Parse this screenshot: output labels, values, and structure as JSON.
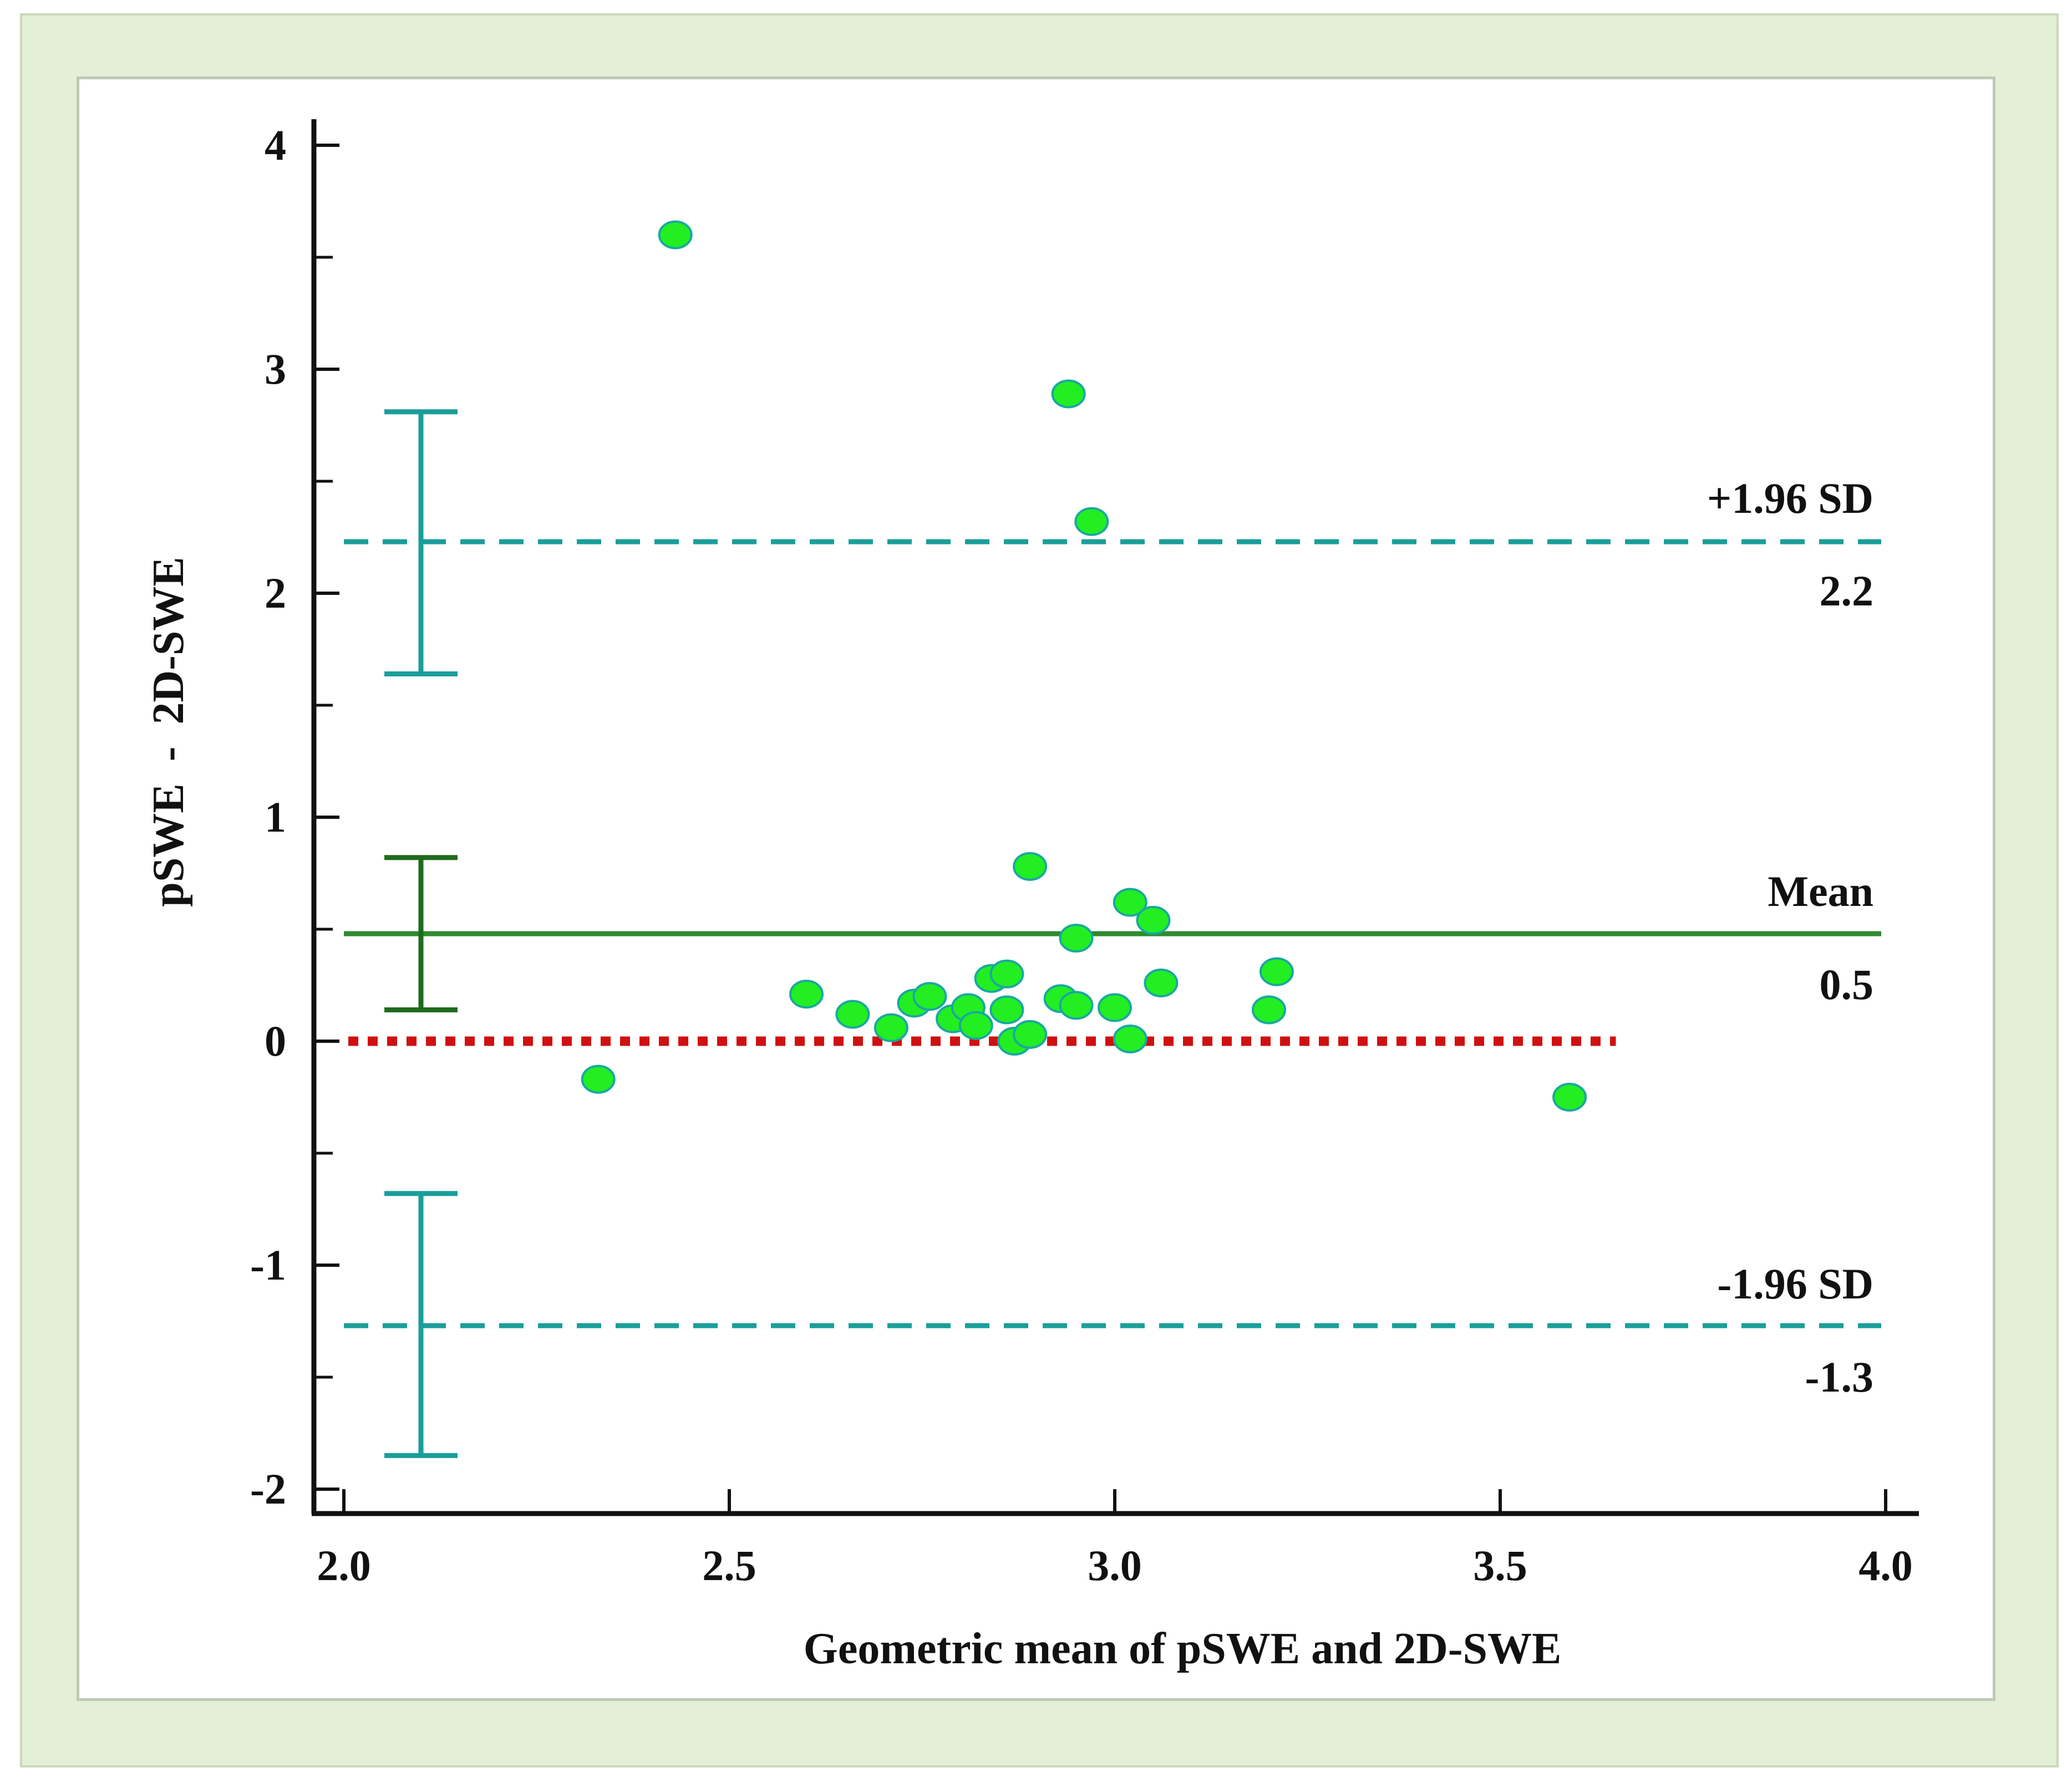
{
  "chart_data": {
    "type": "scatter",
    "title": "",
    "xlabel": "Geometric mean of pSWE and 2D-SWE",
    "ylabel": "pSWE  -  2D-SWE",
    "xlim": [
      2.0,
      4.0
    ],
    "ylim": [
      -2,
      4
    ],
    "xticks": [
      "2.0",
      "2.5",
      "3.0",
      "3.5",
      "4.0"
    ],
    "yticks": [
      "4",
      "3",
      "2",
      "1",
      "0",
      "-1",
      "-2"
    ],
    "grid": false,
    "legend": "none",
    "colors": {
      "points": "#22ee22",
      "point_edge": "#19a8a0",
      "limit_lines": "#1a9e9a",
      "mean_line": "#2e8b2e",
      "mean_ci": "#1e6b1e",
      "zero_line": "#d01010",
      "axis": "#111111"
    },
    "points": [
      {
        "x": 2.43,
        "y": 3.6
      },
      {
        "x": 2.94,
        "y": 2.89
      },
      {
        "x": 2.97,
        "y": 2.32
      },
      {
        "x": 2.33,
        "y": -0.17
      },
      {
        "x": 2.6,
        "y": 0.21
      },
      {
        "x": 2.66,
        "y": 0.12
      },
      {
        "x": 2.71,
        "y": 0.06
      },
      {
        "x": 2.74,
        "y": 0.17
      },
      {
        "x": 2.76,
        "y": 0.2
      },
      {
        "x": 2.79,
        "y": 0.1
      },
      {
        "x": 2.81,
        "y": 0.15
      },
      {
        "x": 2.82,
        "y": 0.07
      },
      {
        "x": 2.84,
        "y": 0.28
      },
      {
        "x": 2.86,
        "y": 0.3
      },
      {
        "x": 2.86,
        "y": 0.14
      },
      {
        "x": 2.87,
        "y": 0.0
      },
      {
        "x": 2.89,
        "y": 0.03
      },
      {
        "x": 2.89,
        "y": 0.78
      },
      {
        "x": 2.93,
        "y": 0.19
      },
      {
        "x": 2.95,
        "y": 0.16
      },
      {
        "x": 2.95,
        "y": 0.46
      },
      {
        "x": 3.0,
        "y": 0.15
      },
      {
        "x": 3.02,
        "y": 0.01
      },
      {
        "x": 3.02,
        "y": 0.62
      },
      {
        "x": 3.05,
        "y": 0.54
      },
      {
        "x": 3.06,
        "y": 0.26
      },
      {
        "x": 3.2,
        "y": 0.14
      },
      {
        "x": 3.21,
        "y": 0.31
      },
      {
        "x": 3.59,
        "y": -0.25
      }
    ],
    "reference_lines": [
      {
        "label": "+1.96 SD",
        "value_label": "2.2",
        "y": 2.23,
        "style": "dashed"
      },
      {
        "label": "Mean",
        "value_label": "0.5",
        "y": 0.48,
        "style": "solid"
      },
      {
        "label": "-1.96 SD",
        "value_label": "-1.3",
        "y": -1.27,
        "style": "dashed"
      }
    ],
    "zero_line": {
      "y": 0,
      "x_end": 3.65,
      "style": "dotted"
    },
    "confidence_intervals": {
      "x": 2.1,
      "upper_limit": [
        1.64,
        2.81
      ],
      "mean": [
        0.14,
        0.82
      ],
      "lower_limit": [
        -1.85,
        -0.68
      ]
    }
  }
}
